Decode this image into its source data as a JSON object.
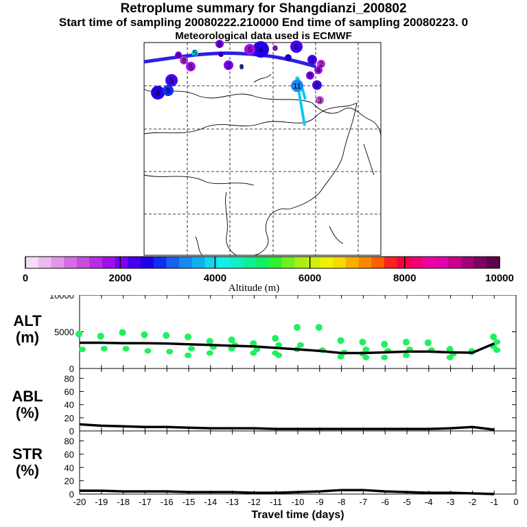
{
  "header": {
    "title": "Retroplume summary for Shangdianzi_200802",
    "sampling": "Start time of sampling 20080222.210000     End time of sampling 20080223.     0",
    "met": "Meteorological data used is ECMWF"
  },
  "colorbar": {
    "label": "Altitude (m)",
    "ticks": [
      "0",
      "2000",
      "4000",
      "6000",
      "8000",
      "10000"
    ],
    "colors": [
      "#f6dcf6",
      "#eeb9ee",
      "#e296e8",
      "#d46ee2",
      "#c84ddc",
      "#b92ce0",
      "#9f10e8",
      "#7d00f0",
      "#4400f0",
      "#2000e6",
      "#1030f0",
      "#1860f0",
      "#1888f0",
      "#10b0f0",
      "#10d8f0",
      "#10f0e8",
      "#10f0c0",
      "#10f090",
      "#10f060",
      "#30f030",
      "#70f020",
      "#a8f010",
      "#d0f008",
      "#f0f000",
      "#f8d800",
      "#f8b000",
      "#f88800",
      "#f86000",
      "#f82020",
      "#f80040",
      "#f00070",
      "#f000a0",
      "#e000b0",
      "#c80090",
      "#a00078",
      "#800060",
      "#600048"
    ]
  },
  "map": {
    "markers": [
      {
        "label": "6",
        "color": "#7d00f0",
        "r": 5
      },
      {
        "label": "5",
        "color": "#10d8f0",
        "r": 5
      },
      {
        "label": "5",
        "color": "#9f10e8",
        "r": 7
      },
      {
        "label": "4",
        "color": "#4400f0",
        "r": 4
      },
      {
        "label": "6",
        "color": "#7d00f0",
        "r": 6
      },
      {
        "label": "8",
        "color": "#b92ce0",
        "r": 6
      },
      {
        "label": "4",
        "color": "#2000e6",
        "r": 12
      },
      {
        "label": "5",
        "color": "#9f10e8",
        "r": 8
      },
      {
        "label": "6",
        "color": "#b92ce0",
        "r": 4
      },
      {
        "label": "5",
        "color": "#4400f0",
        "r": 9
      },
      {
        "label": "3",
        "color": "#1030f0",
        "r": 3
      },
      {
        "label": "3",
        "color": "#7d00f0",
        "r": 7
      },
      {
        "label": "5",
        "color": "#4400f0",
        "r": 9
      },
      {
        "label": "8",
        "color": "#2000e6",
        "r": 10
      },
      {
        "label": "9",
        "color": "#1030f0",
        "r": 8
      },
      {
        "label": "2",
        "color": "#b92ce0",
        "r": 6
      },
      {
        "label": "3",
        "color": "#4400f0",
        "r": 7
      },
      {
        "label": "8",
        "color": "#7d00f0",
        "r": 6
      },
      {
        "label": "4",
        "color": "#9f10e8",
        "r": 6
      },
      {
        "label": "11",
        "color": "#1888f0",
        "r": 9
      },
      {
        "label": "0",
        "color": "#4400f0",
        "r": 7
      },
      {
        "label": "3",
        "color": "#c84ddc",
        "r": 6
      },
      {
        "label": "3",
        "color": "#2000e6",
        "r": 5
      }
    ]
  },
  "chart_data": [
    {
      "type": "line",
      "panel": "ALT",
      "ylabel": "ALT (m)",
      "xlabel": "Travel time (days)",
      "xlim": [
        -20,
        0
      ],
      "ylim": [
        0,
        10000
      ],
      "yticks": [
        "0",
        "5000",
        "10000"
      ],
      "xticks": [
        "-20",
        "-19",
        "-18",
        "-17",
        "-16",
        "-15",
        "-14",
        "-13",
        "-12",
        "-11",
        "-10",
        "-9",
        "-8",
        "-7",
        "-6",
        "-5",
        "-4",
        "-3",
        "-2",
        "-1",
        "0"
      ],
      "series": [
        {
          "name": "median altitude",
          "x": [
            -20,
            -19,
            -18,
            -17,
            -16,
            -15,
            -14,
            -13,
            -12,
            -11,
            -10,
            -9,
            -8,
            -7,
            -6,
            -5,
            -4,
            -3,
            -2,
            -1
          ],
          "y": [
            3500,
            3500,
            3450,
            3450,
            3400,
            3300,
            3200,
            3100,
            3000,
            2800,
            2600,
            2400,
            2100,
            2100,
            2200,
            2300,
            2300,
            2200,
            2150,
            3400
          ]
        }
      ],
      "clusters": [
        {
          "x": -20,
          "y": [
            4700,
            2600
          ]
        },
        {
          "x": -19,
          "y": [
            4400,
            2700
          ]
        },
        {
          "x": -18,
          "y": [
            4900,
            2700
          ]
        },
        {
          "x": -17,
          "y": [
            4600,
            2400
          ]
        },
        {
          "x": -16,
          "y": [
            4500,
            2300
          ]
        },
        {
          "x": -15,
          "y": [
            4300,
            2700,
            1800
          ]
        },
        {
          "x": -14,
          "y": [
            3700,
            2900,
            2100
          ]
        },
        {
          "x": -13,
          "y": [
            3900,
            3200,
            2700
          ]
        },
        {
          "x": -12,
          "y": [
            3400,
            2600,
            2100
          ]
        },
        {
          "x": -11,
          "y": [
            4100,
            3200,
            2100,
            1800
          ]
        },
        {
          "x": -10,
          "y": [
            5600,
            3200,
            2600
          ]
        },
        {
          "x": -9,
          "y": [
            5600,
            2500
          ]
        },
        {
          "x": -8,
          "y": [
            3800,
            2200,
            1600
          ]
        },
        {
          "x": -7,
          "y": [
            3600,
            2600,
            2000,
            1500
          ]
        },
        {
          "x": -6,
          "y": [
            3300,
            2400,
            1500
          ]
        },
        {
          "x": -5,
          "y": [
            3600,
            2600,
            1800
          ]
        },
        {
          "x": -4,
          "y": [
            3500,
            2500
          ]
        },
        {
          "x": -3,
          "y": [
            2600,
            2000,
            1500
          ]
        },
        {
          "x": -2,
          "y": [
            2300
          ]
        },
        {
          "x": -1,
          "y": [
            4300,
            3600,
            3000,
            2500
          ]
        }
      ]
    },
    {
      "type": "line",
      "panel": "ABL",
      "ylabel": "ABL (%)",
      "xlim": [
        -20,
        0
      ],
      "ylim": [
        0,
        95
      ],
      "yticks": [
        "0",
        "20",
        "40",
        "60",
        "80"
      ],
      "series": [
        {
          "name": "ABL fraction",
          "x": [
            -20,
            -19,
            -18,
            -17,
            -16,
            -15,
            -14,
            -13,
            -12,
            -11,
            -10,
            -9,
            -8,
            -7,
            -6,
            -5,
            -4,
            -3,
            -2,
            -1
          ],
          "y": [
            10,
            8,
            7,
            6,
            6,
            5,
            4,
            4,
            4,
            3,
            3,
            3,
            3,
            3,
            3,
            3,
            3,
            4,
            6,
            2
          ]
        }
      ]
    },
    {
      "type": "line",
      "panel": "STR",
      "ylabel": "STR (%)",
      "xlim": [
        -20,
        0
      ],
      "ylim": [
        0,
        95
      ],
      "yticks": [
        "0",
        "20",
        "40",
        "60",
        "80"
      ],
      "series": [
        {
          "name": "stratospheric fraction",
          "x": [
            -20,
            -19,
            -18,
            -17,
            -16,
            -15,
            -14,
            -13,
            -12,
            -11,
            -10,
            -9,
            -8,
            -7,
            -6,
            -5,
            -4,
            -3,
            -2,
            -1
          ],
          "y": [
            5,
            5,
            4,
            4,
            4,
            3,
            3,
            3,
            2,
            2,
            3,
            4,
            6,
            6,
            4,
            3,
            2,
            2,
            1,
            0
          ]
        }
      ]
    }
  ]
}
